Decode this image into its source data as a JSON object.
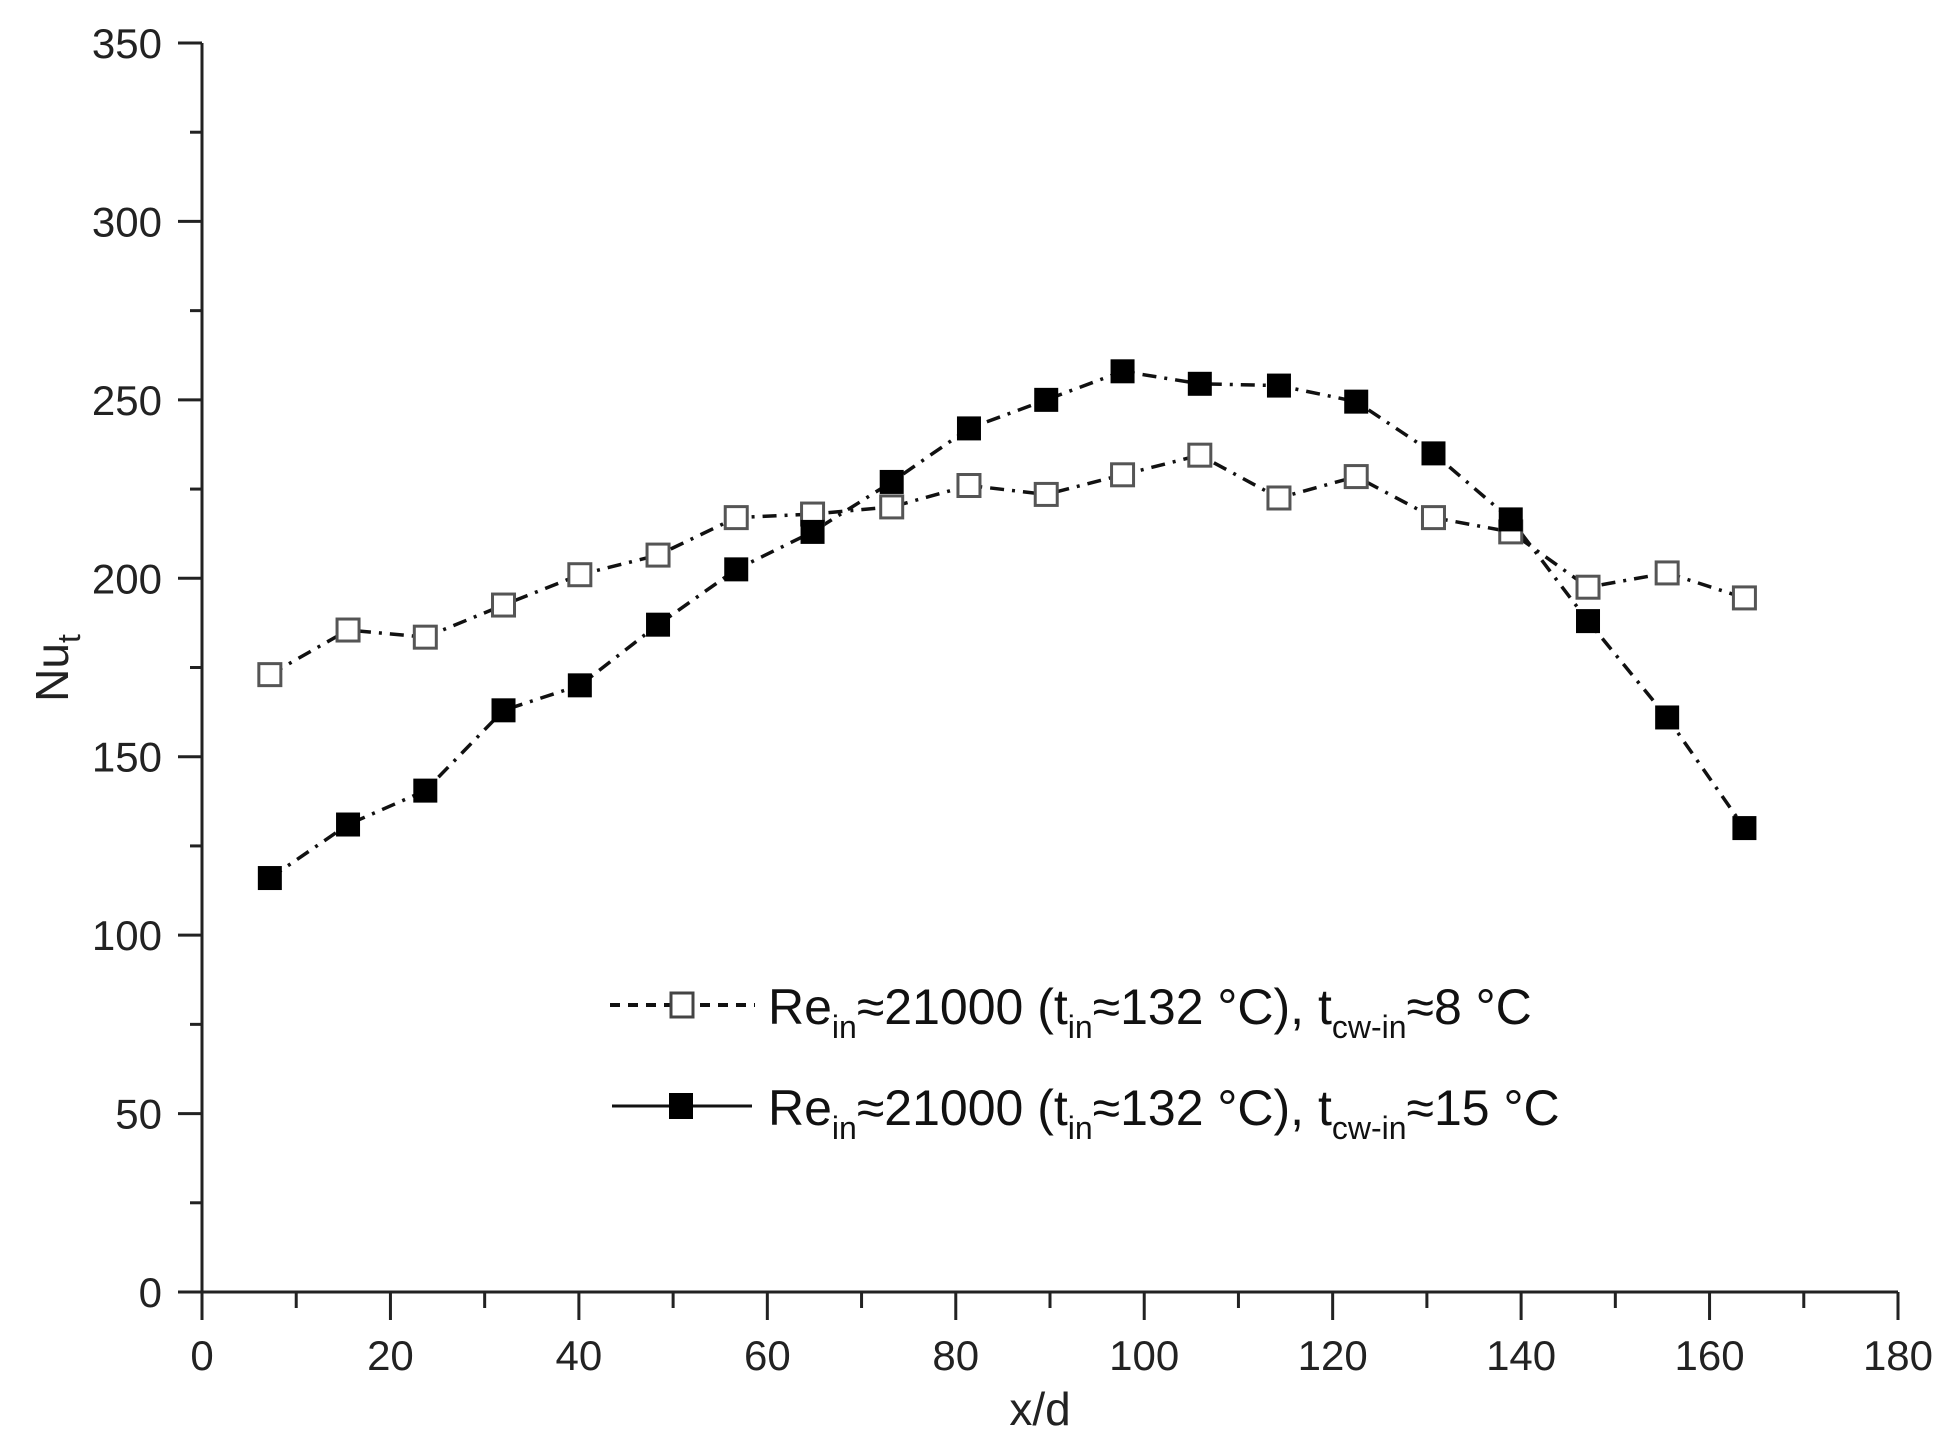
{
  "chart_data": {
    "type": "line",
    "title": "",
    "xlabel": "x/d",
    "ylabel": "Nu_t",
    "ylabel_main": "Nu",
    "ylabel_sub": "t",
    "xlim": [
      0,
      180
    ],
    "ylim": [
      0,
      350
    ],
    "x_ticks": [
      0,
      20,
      40,
      60,
      80,
      100,
      120,
      140,
      160,
      180
    ],
    "y_ticks": [
      0,
      50,
      100,
      150,
      200,
      250,
      300,
      350
    ],
    "grid": false,
    "legend_position": "lower center (inside plot)",
    "x": [
      7.2,
      15.5,
      23.7,
      32.0,
      40.1,
      48.4,
      56.7,
      64.8,
      73.2,
      81.4,
      89.6,
      97.7,
      105.9,
      114.3,
      122.5,
      130.7,
      138.9,
      147.1,
      155.5,
      163.7
    ],
    "series": [
      {
        "name": "Re_in≈21000 (t_in≈132 °C), t_cw-in≈8 °C",
        "marker": "open-square",
        "line": "dash-dot",
        "values": [
          173,
          185.5,
          183.5,
          192.5,
          201,
          206.5,
          217,
          218,
          220,
          226,
          223.5,
          229,
          234.5,
          222.5,
          228.5,
          217,
          213,
          197.5,
          201.5,
          194.5
        ]
      },
      {
        "name": "Re_in≈21000 (t_in≈132 °C), t_cw-in≈15 °C",
        "marker": "filled-square",
        "line": "dash-dot",
        "values": [
          116,
          131,
          140.5,
          163,
          170,
          187,
          202.5,
          213,
          227,
          242,
          250,
          258,
          254.5,
          254,
          249.5,
          235,
          216.5,
          188,
          161,
          130
        ]
      }
    ]
  },
  "legend": [
    {
      "re": "Re",
      "re_sub": "in",
      "approx1": "≈21000 (t",
      "t_sub": "in",
      "approx2": "≈132 °C), t",
      "cw_sub": "cw-in",
      "tail": "≈8 °C"
    },
    {
      "re": "Re",
      "re_sub": "in",
      "approx1": "≈21000 (t",
      "t_sub": "in",
      "approx2": "≈132 °C), t",
      "cw_sub": "cw-in",
      "tail": "≈15 °C"
    }
  ]
}
